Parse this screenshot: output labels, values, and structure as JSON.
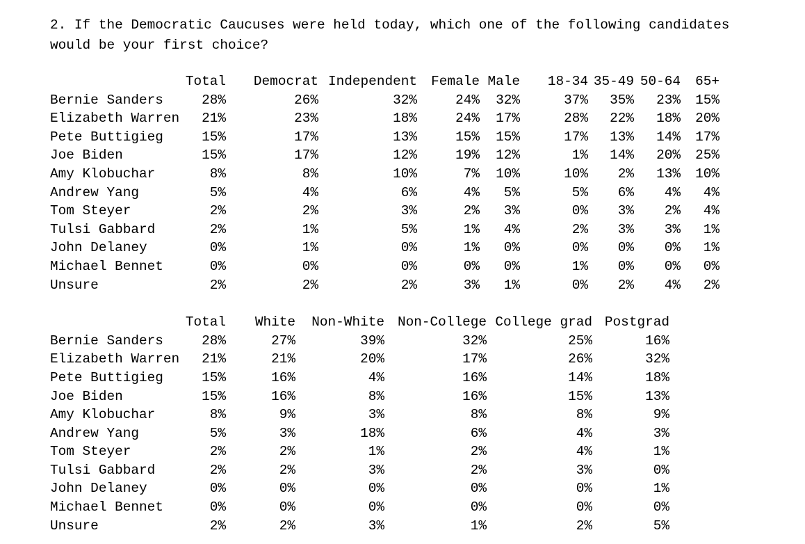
{
  "question": "2. If the Democratic Caucuses were held today, which one of the following candidates would be your first choice?",
  "colors": {
    "text": "#000000",
    "background": "#ffffff"
  },
  "tables": [
    {
      "id": "by-party-gender-age",
      "columns": [
        "Total",
        "Democrat",
        "Independent",
        "Female",
        "Male",
        "18-34",
        "35-49",
        "50-64",
        "65+"
      ],
      "rows": [
        {
          "label": "Bernie Sanders",
          "values": [
            "28%",
            "26%",
            "32%",
            "24%",
            "32%",
            "37%",
            "35%",
            "23%",
            "15%"
          ]
        },
        {
          "label": "Elizabeth Warren",
          "values": [
            "21%",
            "23%",
            "18%",
            "24%",
            "17%",
            "28%",
            "22%",
            "18%",
            "20%"
          ]
        },
        {
          "label": "Pete Buttigieg",
          "values": [
            "15%",
            "17%",
            "13%",
            "15%",
            "15%",
            "17%",
            "13%",
            "14%",
            "17%"
          ]
        },
        {
          "label": "Joe Biden",
          "values": [
            "15%",
            "17%",
            "12%",
            "19%",
            "12%",
            "1%",
            "14%",
            "20%",
            "25%"
          ]
        },
        {
          "label": "Amy Klobuchar",
          "values": [
            "8%",
            "8%",
            "10%",
            "7%",
            "10%",
            "10%",
            "2%",
            "13%",
            "10%"
          ]
        },
        {
          "label": "Andrew Yang",
          "values": [
            "5%",
            "4%",
            "6%",
            "4%",
            "5%",
            "5%",
            "6%",
            "4%",
            "4%"
          ]
        },
        {
          "label": "Tom Steyer",
          "values": [
            "2%",
            "2%",
            "3%",
            "2%",
            "3%",
            "0%",
            "3%",
            "2%",
            "4%"
          ]
        },
        {
          "label": "Tulsi Gabbard",
          "values": [
            "2%",
            "1%",
            "5%",
            "1%",
            "4%",
            "2%",
            "3%",
            "3%",
            "1%"
          ]
        },
        {
          "label": "John Delaney",
          "values": [
            "0%",
            "1%",
            "0%",
            "1%",
            "0%",
            "0%",
            "0%",
            "0%",
            "1%"
          ]
        },
        {
          "label": "Michael Bennet",
          "values": [
            "0%",
            "0%",
            "0%",
            "0%",
            "0%",
            "1%",
            "0%",
            "0%",
            "0%"
          ]
        },
        {
          "label": "Unsure",
          "values": [
            "2%",
            "2%",
            "2%",
            "3%",
            "1%",
            "0%",
            "2%",
            "4%",
            "2%"
          ]
        }
      ]
    },
    {
      "id": "by-race-education",
      "columns": [
        "Total",
        "White",
        "Non-White",
        "Non-College",
        "College grad",
        "Postgrad"
      ],
      "rows": [
        {
          "label": "Bernie Sanders",
          "values": [
            "28%",
            "27%",
            "39%",
            "32%",
            "25%",
            "16%"
          ]
        },
        {
          "label": "Elizabeth Warren",
          "values": [
            "21%",
            "21%",
            "20%",
            "17%",
            "26%",
            "32%"
          ]
        },
        {
          "label": "Pete Buttigieg",
          "values": [
            "15%",
            "16%",
            "4%",
            "16%",
            "14%",
            "18%"
          ]
        },
        {
          "label": "Joe Biden",
          "values": [
            "15%",
            "16%",
            "8%",
            "16%",
            "15%",
            "13%"
          ]
        },
        {
          "label": "Amy Klobuchar",
          "values": [
            "8%",
            "9%",
            "3%",
            "8%",
            "8%",
            "9%"
          ]
        },
        {
          "label": "Andrew Yang",
          "values": [
            "5%",
            "3%",
            "18%",
            "6%",
            "4%",
            "3%"
          ]
        },
        {
          "label": "Tom Steyer",
          "values": [
            "2%",
            "2%",
            "1%",
            "2%",
            "4%",
            "1%"
          ]
        },
        {
          "label": "Tulsi Gabbard",
          "values": [
            "2%",
            "2%",
            "3%",
            "2%",
            "3%",
            "0%"
          ]
        },
        {
          "label": "John Delaney",
          "values": [
            "0%",
            "0%",
            "0%",
            "0%",
            "0%",
            "1%"
          ]
        },
        {
          "label": "Michael Bennet",
          "values": [
            "0%",
            "0%",
            "0%",
            "0%",
            "0%",
            "0%"
          ]
        },
        {
          "label": "Unsure",
          "values": [
            "2%",
            "2%",
            "3%",
            "1%",
            "2%",
            "5%"
          ]
        }
      ]
    }
  ]
}
